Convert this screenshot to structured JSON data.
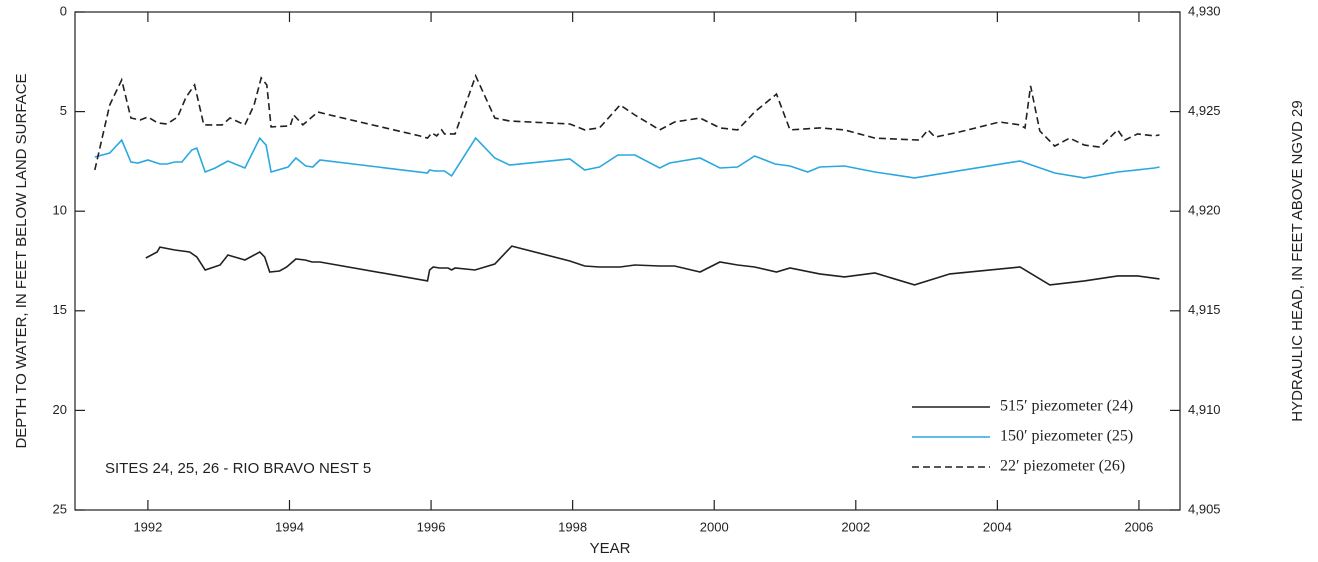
{
  "chart_data": {
    "type": "line",
    "annotation": "SITES 24, 25, 26 - RIO BRAVO NEST 5",
    "xlabel": "YEAR",
    "ylabel": "DEPTH TO WATER, IN FEET BELOW LAND SURFACE",
    "y2label": "HYDRAULIC HEAD, IN FEET ABOVE NGVD 29",
    "xlim": [
      1990.97,
      2006.58
    ],
    "xticks": [
      1992,
      1994,
      1996,
      1998,
      2000,
      2002,
      2004,
      2006
    ],
    "ylim": [
      0,
      25
    ],
    "invert_y": true,
    "yticks": [
      0,
      5,
      10,
      15,
      20,
      25
    ],
    "y2lim": [
      4905,
      4930
    ],
    "y2ticks": [
      {
        "value": 4905,
        "label": "4,905"
      },
      {
        "value": 4910,
        "label": "4,910"
      },
      {
        "value": 4915,
        "label": "4,915"
      },
      {
        "value": 4920,
        "label": "4,920"
      },
      {
        "value": 4925,
        "label": "4,925"
      },
      {
        "value": 4930,
        "label": "4,930"
      }
    ],
    "legend": "lower right",
    "series": [
      {
        "name": "515′ piezometer (24)",
        "color": "#231f20",
        "linestyle": "solid",
        "x": [
          1991.97,
          1992.13,
          1992.17,
          1992.38,
          1992.59,
          1992.69,
          1992.81,
          1993.02,
          1993.13,
          1993.37,
          1993.58,
          1993.65,
          1993.72,
          1993.86,
          1993.96,
          1994.09,
          1994.22,
          1994.32,
          1994.43,
          1995.95,
          1995.98,
          1996.03,
          1996.12,
          1996.24,
          1996.29,
          1996.34,
          1996.62,
          1996.9,
          1997.14,
          1997.96,
          1998.17,
          1998.38,
          1998.67,
          1998.88,
          1999.23,
          1999.44,
          1999.8,
          2000.08,
          2000.33,
          2000.57,
          2000.88,
          2001.07,
          2001.49,
          2001.84,
          2002.27,
          2002.83,
          2003.33,
          2004.32,
          2004.74,
          2005.23,
          2005.7,
          2005.98,
          2006.29
        ],
        "values": [
          12.35,
          12.05,
          11.8,
          11.95,
          12.05,
          12.3,
          12.95,
          12.7,
          12.2,
          12.45,
          12.05,
          12.3,
          13.05,
          13.0,
          12.8,
          12.4,
          12.45,
          12.55,
          12.55,
          13.5,
          12.95,
          12.8,
          12.85,
          12.85,
          12.95,
          12.85,
          12.95,
          12.65,
          11.75,
          12.5,
          12.75,
          12.8,
          12.8,
          12.7,
          12.75,
          12.75,
          13.05,
          12.55,
          12.7,
          12.8,
          13.05,
          12.85,
          13.15,
          13.3,
          13.1,
          13.7,
          13.15,
          12.8,
          13.7,
          13.5,
          13.25,
          13.25,
          13.4
        ]
      },
      {
        "name": "150′ piezometer (25)",
        "color": "#29a8e0",
        "linestyle": "solid",
        "x": [
          1991.25,
          1991.46,
          1991.63,
          1991.76,
          1991.86,
          1992.0,
          1992.17,
          1992.27,
          1992.38,
          1992.48,
          1992.62,
          1992.69,
          1992.81,
          1992.95,
          1993.13,
          1993.37,
          1993.58,
          1993.67,
          1993.74,
          1993.98,
          1994.09,
          1994.23,
          1994.33,
          1994.43,
          1995.95,
          1995.98,
          1996.05,
          1996.19,
          1996.29,
          1996.63,
          1996.9,
          1997.11,
          1997.96,
          1998.17,
          1998.38,
          1998.64,
          1998.88,
          1999.23,
          1999.37,
          1999.8,
          2000.08,
          2000.33,
          2000.57,
          2000.86,
          2001.07,
          2001.32,
          2001.49,
          2001.84,
          2002.27,
          2002.83,
          2004.32,
          2004.81,
          2005.23,
          2005.7,
          2006.22,
          2006.29
        ],
        "values": [
          7.28,
          7.08,
          6.43,
          7.53,
          7.58,
          7.43,
          7.63,
          7.63,
          7.53,
          7.53,
          6.93,
          6.83,
          8.03,
          7.83,
          7.48,
          7.83,
          6.33,
          6.68,
          8.03,
          7.78,
          7.33,
          7.73,
          7.78,
          7.43,
          8.08,
          7.93,
          7.98,
          7.98,
          8.23,
          6.33,
          7.33,
          7.68,
          7.38,
          7.93,
          7.78,
          7.18,
          7.18,
          7.83,
          7.58,
          7.33,
          7.83,
          7.78,
          7.23,
          7.63,
          7.73,
          8.03,
          7.78,
          7.73,
          8.03,
          8.33,
          7.48,
          8.08,
          8.33,
          8.03,
          7.83,
          7.78
        ]
      },
      {
        "name": "22′ piezometer (26)",
        "color": "#231f20",
        "linestyle": "dashed",
        "x": [
          1991.25,
          1991.46,
          1991.63,
          1991.76,
          1991.89,
          1992.0,
          1992.14,
          1992.27,
          1992.42,
          1992.54,
          1992.66,
          1992.79,
          1993.05,
          1993.16,
          1993.37,
          1993.5,
          1993.6,
          1993.68,
          1993.74,
          1994.01,
          1994.06,
          1994.19,
          1994.4,
          1994.57,
          1995.84,
          1995.95,
          1996.01,
          1996.08,
          1996.15,
          1996.19,
          1996.34,
          1996.63,
          1996.9,
          1997.11,
          1997.96,
          1998.17,
          1998.38,
          1998.67,
          1998.88,
          1999.23,
          1999.44,
          1999.8,
          2000.08,
          2000.33,
          2000.57,
          2000.88,
          2001.07,
          2001.49,
          2001.84,
          2002.27,
          2002.9,
          2003.02,
          2003.12,
          2003.47,
          2004.03,
          2004.32,
          2004.39,
          2004.47,
          2004.6,
          2004.81,
          2005.02,
          2005.23,
          2005.45,
          2005.7,
          2005.8,
          2005.98,
          2006.22,
          2006.29
        ],
        "values": [
          7.93,
          4.67,
          3.41,
          5.32,
          5.42,
          5.27,
          5.57,
          5.62,
          5.27,
          4.27,
          3.66,
          5.67,
          5.67,
          5.32,
          5.67,
          4.67,
          3.31,
          3.66,
          5.77,
          5.72,
          5.17,
          5.67,
          5.02,
          5.17,
          6.22,
          6.33,
          6.07,
          6.22,
          5.92,
          6.12,
          6.12,
          3.21,
          5.32,
          5.47,
          5.62,
          5.92,
          5.82,
          4.67,
          5.17,
          5.92,
          5.52,
          5.32,
          5.82,
          5.92,
          5.02,
          4.12,
          5.92,
          5.82,
          5.92,
          6.33,
          6.43,
          5.92,
          6.28,
          6.02,
          5.52,
          5.67,
          5.82,
          3.71,
          5.97,
          6.73,
          6.33,
          6.68,
          6.78,
          5.92,
          6.43,
          6.12,
          6.22,
          6.17
        ]
      }
    ]
  }
}
